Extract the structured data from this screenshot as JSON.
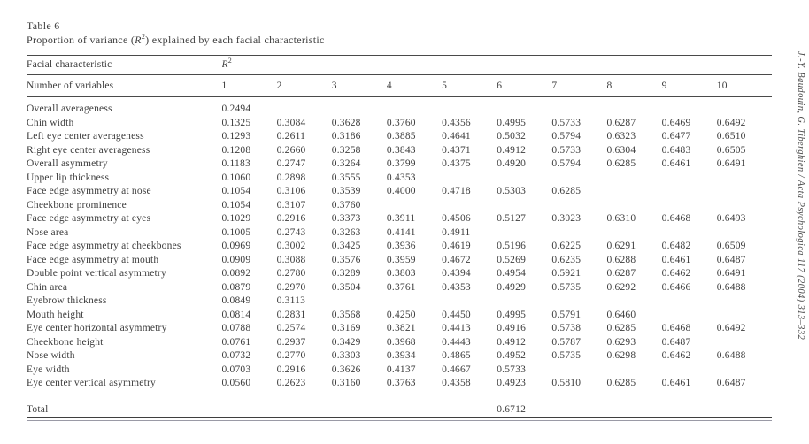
{
  "page": {
    "title": "Table 6",
    "subtitle_prefix": "Proportion of variance (",
    "subtitle_r": "R",
    "subtitle_sup": "2",
    "subtitle_suffix": ") explained by each facial characteristic"
  },
  "citation": "J.-Y. Baudouin, G. Tiberghien / Acta Psychologica 117 (2004) 313–332",
  "table": {
    "col1_header": "Facial characteristic",
    "r_header": "R",
    "r_header_sup": "2",
    "subheader_label": "Number of variables",
    "number_cols": [
      "1",
      "2",
      "3",
      "4",
      "5",
      "6",
      "7",
      "8",
      "9",
      "10"
    ],
    "rows": [
      {
        "label": "Overall averageness",
        "values": [
          "0.2494"
        ]
      },
      {
        "label": "Chin width",
        "values": [
          "0.1325",
          "0.3084",
          "0.3628",
          "0.3760",
          "0.4356",
          "0.4995",
          "0.5733",
          "0.6287",
          "0.6469",
          "0.6492"
        ]
      },
      {
        "label": "Left eye center averageness",
        "values": [
          "0.1293",
          "0.2611",
          "0.3186",
          "0.3885",
          "0.4641",
          "0.5032",
          "0.5794",
          "0.6323",
          "0.6477",
          "0.6510"
        ]
      },
      {
        "label": "Right eye center averageness",
        "values": [
          "0.1208",
          "0.2660",
          "0.3258",
          "0.3843",
          "0.4371",
          "0.4912",
          "0.5733",
          "0.6304",
          "0.6483",
          "0.6505"
        ]
      },
      {
        "label": "Overall asymmetry",
        "values": [
          "0.1183",
          "0.2747",
          "0.3264",
          "0.3799",
          "0.4375",
          "0.4920",
          "0.5794",
          "0.6285",
          "0.6461",
          "0.6491"
        ]
      },
      {
        "label": "Upper lip thickness",
        "values": [
          "0.1060",
          "0.2898",
          "0.3555",
          "0.4353"
        ]
      },
      {
        "label": "Face edge asymmetry at nose",
        "values": [
          "0.1054",
          "0.3106",
          "0.3539",
          "0.4000",
          "0.4718",
          "0.5303",
          "0.6285"
        ]
      },
      {
        "label": "Cheekbone prominence",
        "values": [
          "0.1054",
          "0.3107",
          "0.3760"
        ]
      },
      {
        "label": "Face edge asymmetry at eyes",
        "values": [
          "0.1029",
          "0.2916",
          "0.3373",
          "0.3911",
          "0.4506",
          "0.5127",
          "0.3023",
          "0.6310",
          "0.6468",
          "0.6493"
        ]
      },
      {
        "label": "Nose area",
        "values": [
          "0.1005",
          "0.2743",
          "0.3263",
          "0.4141",
          "0.4911"
        ]
      },
      {
        "label": "Face edge asymmetry at cheekbones",
        "values": [
          "0.0969",
          "0.3002",
          "0.3425",
          "0.3936",
          "0.4619",
          "0.5196",
          "0.6225",
          "0.6291",
          "0.6482",
          "0.6509"
        ]
      },
      {
        "label": "Face edge asymmetry at mouth",
        "values": [
          "0.0909",
          "0.3088",
          "0.3576",
          "0.3959",
          "0.4672",
          "0.5269",
          "0.6235",
          "0.6288",
          "0.6461",
          "0.6487"
        ]
      },
      {
        "label": "Double point vertical asymmetry",
        "values": [
          "0.0892",
          "0.2780",
          "0.3289",
          "0.3803",
          "0.4394",
          "0.4954",
          "0.5921",
          "0.6287",
          "0.6462",
          "0.6491"
        ]
      },
      {
        "label": "Chin area",
        "values": [
          "0.0879",
          "0.2970",
          "0.3504",
          "0.3761",
          "0.4353",
          "0.4929",
          "0.5735",
          "0.6292",
          "0.6466",
          "0.6488"
        ]
      },
      {
        "label": "Eyebrow thickness",
        "values": [
          "0.0849",
          "0.3113"
        ]
      },
      {
        "label": "Mouth height",
        "values": [
          "0.0814",
          "0.2831",
          "0.3568",
          "0.4250",
          "0.4450",
          "0.4995",
          "0.5791",
          "0.6460"
        ]
      },
      {
        "label": "Eye center horizontal asymmetry",
        "values": [
          "0.0788",
          "0.2574",
          "0.3169",
          "0.3821",
          "0.4413",
          "0.4916",
          "0.5738",
          "0.6285",
          "0.6468",
          "0.6492"
        ]
      },
      {
        "label": "Cheekbone height",
        "values": [
          "0.0761",
          "0.2937",
          "0.3429",
          "0.3968",
          "0.4443",
          "0.4912",
          "0.5787",
          "0.6293",
          "0.6487"
        ]
      },
      {
        "label": "Nose width",
        "values": [
          "0.0732",
          "0.2770",
          "0.3303",
          "0.3934",
          "0.4865",
          "0.4952",
          "0.5735",
          "0.6298",
          "0.6462",
          "0.6488"
        ]
      },
      {
        "label": "Eye width",
        "values": [
          "0.0703",
          "0.2916",
          "0.3626",
          "0.4137",
          "0.4667",
          "0.5733"
        ]
      },
      {
        "label": "Eye center vertical asymmetry",
        "values": [
          "0.0560",
          "0.2623",
          "0.3160",
          "0.3763",
          "0.4358",
          "0.4923",
          "0.5810",
          "0.6285",
          "0.6461",
          "0.6487"
        ]
      }
    ],
    "total_label": "Total",
    "total_col": 6,
    "total_value": "0.6712"
  }
}
